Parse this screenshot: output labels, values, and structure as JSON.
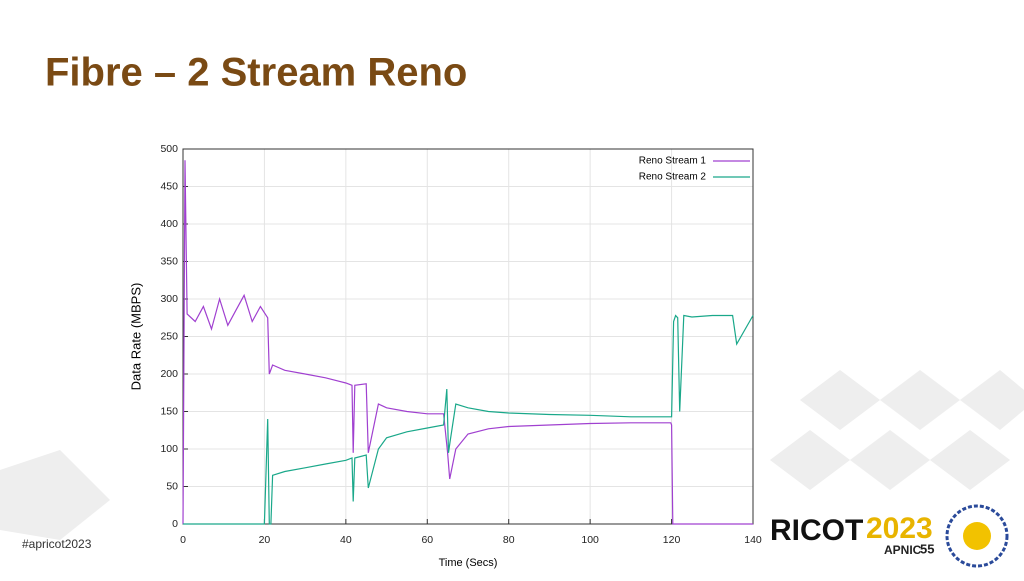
{
  "title": "Fibre – 2 Stream Reno",
  "footer": {
    "hashtag": "#apricot2023",
    "logo_text": "RICOT",
    "logo_year": "2023",
    "logo_sub": "APNIC",
    "logo_num": "55"
  },
  "chart_data": {
    "type": "line",
    "xlabel": "Time (Secs)",
    "ylabel": "Data Rate (MBPS)",
    "xlim": [
      0,
      140
    ],
    "ylim": [
      0,
      500
    ],
    "xticks": [
      0,
      20,
      40,
      60,
      80,
      100,
      120,
      140
    ],
    "yticks": [
      0,
      50,
      100,
      150,
      200,
      250,
      300,
      350,
      400,
      450,
      500
    ],
    "grid": true,
    "legend": "upper right",
    "series": [
      {
        "name": "Reno Stream 1",
        "color": "#a040d0",
        "x": [
          0,
          0.5,
          1,
          3,
          5,
          7,
          9,
          11,
          13,
          15,
          17,
          19,
          20.8,
          21.2,
          22,
          25,
          30,
          35,
          40,
          41.5,
          41.8,
          42.2,
          45,
          45.5,
          48,
          50,
          55,
          60,
          64,
          65,
          65.5,
          67,
          70,
          75,
          80,
          90,
          100,
          110,
          119.8,
          120,
          120.3,
          130,
          140
        ],
        "values": [
          0,
          485,
          280,
          270,
          290,
          260,
          300,
          265,
          285,
          305,
          270,
          290,
          275,
          200,
          212,
          205,
          200,
          195,
          188,
          185,
          95,
          185,
          187,
          95,
          160,
          155,
          150,
          147,
          147,
          95,
          60,
          100,
          120,
          127,
          130,
          132,
          134,
          135,
          135,
          132,
          0,
          0,
          0
        ]
      },
      {
        "name": "Reno Stream 2",
        "color": "#1aa88a",
        "x": [
          0,
          20,
          20.8,
          21.2,
          21.6,
          22,
          25,
          30,
          35,
          40,
          41.5,
          41.8,
          42.2,
          45,
          45.5,
          48,
          50,
          55,
          60,
          64,
          64.8,
          65.2,
          65.6,
          67,
          70,
          75,
          80,
          90,
          100,
          110,
          120,
          120.5,
          121,
          121.5,
          122,
          123,
          125,
          130,
          135,
          136,
          140
        ],
        "values": [
          0,
          0,
          140,
          0,
          0,
          65,
          70,
          75,
          80,
          85,
          88,
          30,
          88,
          92,
          48,
          100,
          115,
          123,
          128,
          132,
          180,
          95,
          110,
          160,
          155,
          150,
          148,
          146,
          145,
          143,
          143,
          270,
          278,
          275,
          150,
          278,
          276,
          278,
          278,
          240,
          278
        ]
      }
    ]
  }
}
